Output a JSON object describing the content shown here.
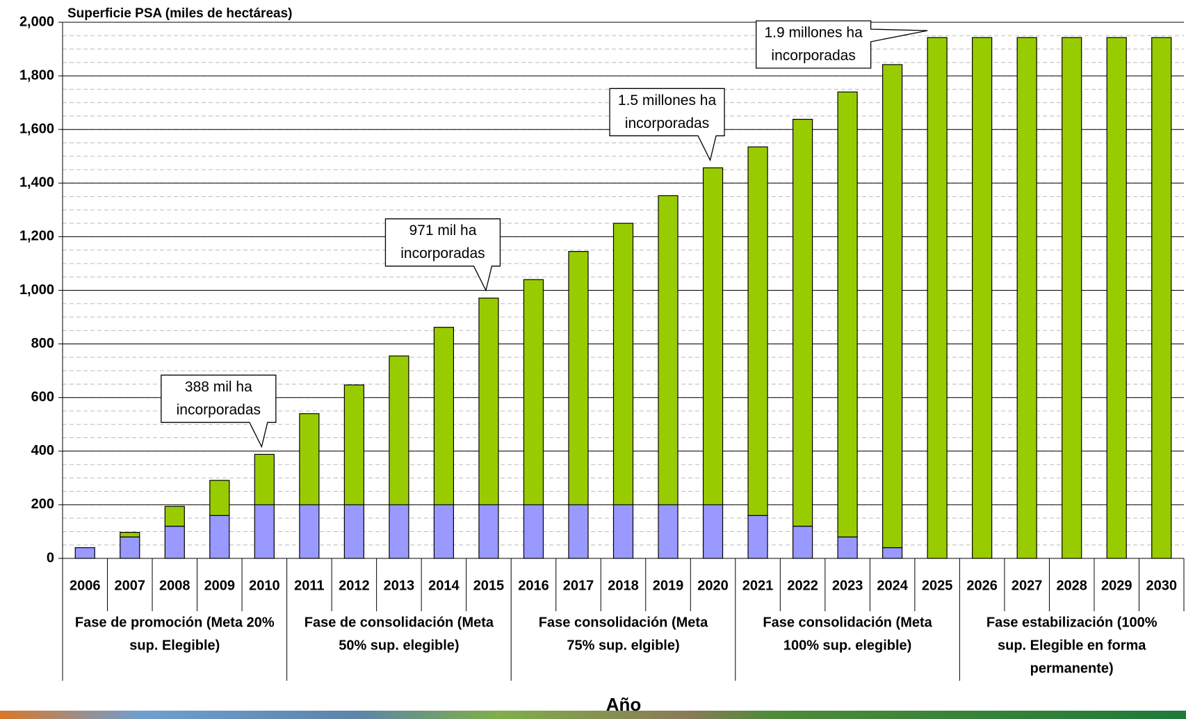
{
  "chart_data": {
    "type": "stacked_bar",
    "title": "Superficie PSA (miles de hectáreas)",
    "x_label": "Año",
    "categories": [
      "2006",
      "2007",
      "2008",
      "2009",
      "2010",
      "2011",
      "2012",
      "2013",
      "2014",
      "2015",
      "2016",
      "2017",
      "2018",
      "2019",
      "2020",
      "2021",
      "2022",
      "2023",
      "2024",
      "2025",
      "2026",
      "2027",
      "2028",
      "2029",
      "2030"
    ],
    "series": [
      {
        "color": "#9999ff",
        "values": [
          40,
          80,
          120,
          160,
          200,
          200,
          200,
          200,
          200,
          200,
          200,
          200,
          200,
          200,
          200,
          160,
          120,
          80,
          40,
          0,
          0,
          0,
          0,
          0,
          0
        ]
      },
      {
        "color": "#99cc00",
        "values": [
          0,
          17,
          74,
          131,
          188,
          340,
          447,
          555,
          662,
          771,
          840,
          945,
          1050,
          1153,
          1257,
          1375,
          1518,
          1660,
          1802,
          1943,
          1943,
          1943,
          1943,
          1943,
          1943
        ]
      }
    ],
    "ylim": [
      0,
      2000
    ],
    "yticks": [
      0,
      200,
      400,
      600,
      800,
      {
        "value": 1000,
        "label": "1,000"
      },
      {
        "value": 1200,
        "label": "1,200"
      },
      {
        "value": 1400,
        "label": "1,400"
      },
      {
        "value": 1600,
        "label": "1,600"
      },
      {
        "value": 1800,
        "label": "1,800"
      },
      {
        "value": 2000,
        "label": "2,000"
      }
    ],
    "minor_grid_step": 50,
    "grid": true,
    "phases": [
      {
        "lines": [
          "Fase de promoción (Meta 20%",
          "sup. Elegible)"
        ]
      },
      {
        "lines": [
          "Fase de consolidación (Meta",
          "50% sup. elegible)"
        ]
      },
      {
        "lines": [
          "Fase consolidación (Meta",
          "75% sup. elgible)"
        ]
      },
      {
        "lines": [
          "Fase consolidación (Meta",
          "100% sup. elegible)"
        ]
      },
      {
        "lines": [
          "Fase estabilización (100%",
          "sup. Elegible en forma",
          "permanente)"
        ]
      }
    ],
    "annotations": [
      {
        "category": "2010",
        "lines": [
          "388 mil ha",
          "incorporadas"
        ]
      },
      {
        "category": "2015",
        "lines": [
          "971 mil ha",
          "incorporadas"
        ]
      },
      {
        "category": "2020",
        "lines": [
          "1.5 millones ha",
          "incorporadas"
        ]
      },
      {
        "category": "2025",
        "lines": [
          "1.9 millones ha",
          "incorporadas"
        ]
      }
    ]
  }
}
